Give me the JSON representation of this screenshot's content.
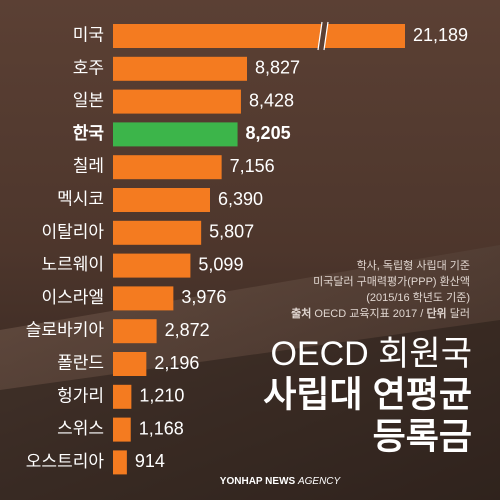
{
  "chart_data": {
    "type": "bar",
    "orientation": "horizontal",
    "categories": [
      "미국",
      "호주",
      "일본",
      "한국",
      "칠레",
      "멕시코",
      "이탈리아",
      "노르웨이",
      "이스라엘",
      "슬로바키아",
      "폴란드",
      "헝가리",
      "스위스",
      "오스트리아"
    ],
    "values": [
      21189,
      8827,
      8428,
      8205,
      7156,
      6390,
      5807,
      5099,
      3976,
      2872,
      2196,
      1210,
      1168,
      914
    ],
    "value_labels": [
      "21,189",
      "8,827",
      "8,428",
      "8,205",
      "7,156",
      "6,390",
      "5,807",
      "5,099",
      "3,976",
      "2,872",
      "2,196",
      "1,210",
      "1,168",
      "914"
    ],
    "colors": [
      "#f47b20",
      "#f47b20",
      "#f47b20",
      "#3cb54a",
      "#f47b20",
      "#f47b20",
      "#f47b20",
      "#f47b20",
      "#f47b20",
      "#f47b20",
      "#f47b20",
      "#f47b20",
      "#f47b20",
      "#f47b20"
    ],
    "highlight_index": 3,
    "axis_break": true,
    "notes": [
      "학사, 독립형 사립대 기준",
      "미국달러 구매력평가(PPP) 환산액",
      "(2015/16 학년도 기준)"
    ],
    "source_label": "출처",
    "source": "OECD 교육지표 2017 /",
    "unit_label": "단위",
    "unit": "달러",
    "title": [
      "OECD 회원국",
      "사립대 연평균",
      "등록금"
    ],
    "credit_bold": "YONHAP NEWS",
    "credit_rest": "AGENCY"
  }
}
